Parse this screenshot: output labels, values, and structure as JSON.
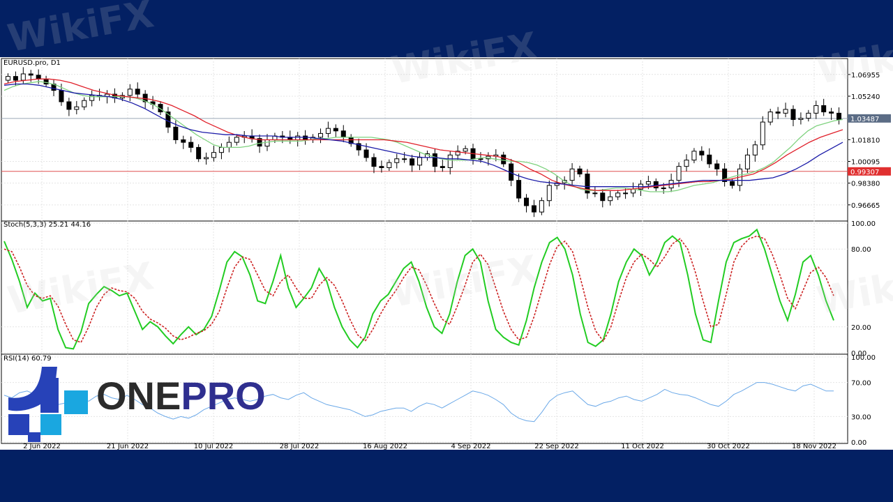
{
  "chart_data": [
    {
      "type": "candlestick",
      "title": "EURUSD.pro, D1",
      "y_ticks": [
        "1.06955",
        "1.05240",
        "1.01810",
        "1.00095",
        "0.98380",
        "0.96665"
      ],
      "y_tick_values": [
        1.06955,
        1.0524,
        1.0181,
        1.00095,
        0.9838,
        0.96665
      ],
      "ylim": [
        0.955,
        1.081
      ],
      "current_price_label": "1.03487",
      "current_price": 1.03487,
      "horizontal_level_label": "0.99307",
      "horizontal_level": 0.99307,
      "x_tick_labels": [
        "2 Jun 2022",
        "21 Jun 2022",
        "10 Jul 2022",
        "28 Jul 2022",
        "16 Aug 2022",
        "4 Sep 2022",
        "22 Sep 2022",
        "11 Oct 2022",
        "30 Oct 2022",
        "18 Nov 2022"
      ],
      "close_path": [
        1.068,
        1.065,
        1.07,
        1.069,
        1.066,
        1.062,
        1.057,
        1.048,
        1.042,
        1.044,
        1.049,
        1.053,
        1.052,
        1.054,
        1.051,
        1.053,
        1.058,
        1.054,
        1.048,
        1.046,
        1.04,
        1.028,
        1.018,
        1.016,
        1.012,
        1.003,
        1.004,
        1.008,
        1.012,
        1.016,
        1.02,
        1.021,
        1.019,
        1.013,
        1.018,
        1.021,
        1.02,
        1.018,
        1.021,
        1.018,
        1.02,
        1.023,
        1.027,
        1.025,
        1.02,
        1.015,
        1.01,
        1.004,
        0.997,
        0.996,
        1.0,
        1.003,
        1.003,
        0.998,
        1.004,
        1.007,
        0.997,
        0.996,
        1.006,
        1.009,
        1.011,
        1.003,
        1.003,
        1.005,
        1.006,
        0.999,
        0.986,
        0.972,
        0.966,
        0.961,
        0.97,
        0.982,
        0.984,
        0.986,
        0.995,
        0.991,
        0.976,
        0.976,
        0.97,
        0.973,
        0.976,
        0.976,
        0.979,
        0.983,
        0.985,
        0.98,
        0.98,
        0.986,
        0.997,
        1.002,
        1.009,
        1.006,
        0.999,
        0.995,
        0.985,
        0.982,
        0.995,
        1.006,
        1.014,
        1.032,
        1.04,
        1.039,
        1.042,
        1.034,
        1.035,
        1.039,
        1.045,
        1.04,
        1.039,
        1.034
      ],
      "ma_fast": [
        1.057,
        1.06,
        1.062,
        1.063,
        1.064,
        1.063,
        1.061,
        1.058,
        1.055,
        1.053,
        1.052,
        1.052,
        1.052,
        1.052,
        1.052,
        1.051,
        1.049,
        1.046,
        1.042,
        1.037,
        1.032,
        1.027,
        1.022,
        1.018,
        1.014,
        1.012,
        1.012,
        1.012,
        1.013,
        1.015,
        1.016,
        1.017,
        1.017,
        1.017,
        1.017,
        1.018,
        1.019,
        1.019,
        1.02,
        1.02,
        1.02,
        1.02,
        1.02,
        1.019,
        1.018,
        1.016,
        1.013,
        1.01,
        1.007,
        1.005,
        1.003,
        1.002,
        1.002,
        1.002,
        1.003,
        1.004,
        1.003,
        1.002,
        1.001,
        1.001,
        1.0,
        0.998,
        0.995,
        0.991,
        0.986,
        0.982,
        0.979,
        0.978,
        0.978,
        0.979,
        0.98,
        0.98,
        0.979,
        0.978,
        0.977,
        0.977,
        0.977,
        0.978,
        0.98,
        0.982,
        0.983,
        0.984,
        0.986,
        0.988,
        0.99,
        0.991,
        0.993,
        0.996,
        1.0,
        1.006,
        1.012,
        1.019,
        1.025,
        1.029,
        1.031,
        1.033,
        1.034
      ],
      "ma_mid": [
        1.062,
        1.064,
        1.065,
        1.066,
        1.066,
        1.065,
        1.063,
        1.06,
        1.057,
        1.055,
        1.053,
        1.052,
        1.051,
        1.05,
        1.048,
        1.045,
        1.041,
        1.037,
        1.032,
        1.028,
        1.024,
        1.021,
        1.019,
        1.018,
        1.018,
        1.018,
        1.018,
        1.018,
        1.018,
        1.018,
        1.018,
        1.018,
        1.018,
        1.018,
        1.018,
        1.017,
        1.016,
        1.014,
        1.012,
        1.01,
        1.009,
        1.008,
        1.007,
        1.006,
        1.005,
        1.003,
        1.0,
        0.995,
        0.991,
        0.986,
        0.983,
        0.981,
        0.979,
        0.978,
        0.978,
        0.978,
        0.979,
        0.98,
        0.981,
        0.982,
        0.983,
        0.984,
        0.985,
        0.985,
        0.986,
        0.987,
        0.989,
        0.991,
        0.995,
        1.0,
        1.006,
        1.011,
        1.016,
        1.02,
        1.023,
        1.026
      ],
      "ma_slow": [
        1.061,
        1.062,
        1.062,
        1.061,
        1.059,
        1.057,
        1.055,
        1.054,
        1.053,
        1.052,
        1.05,
        1.047,
        1.043,
        1.038,
        1.033,
        1.029,
        1.026,
        1.024,
        1.023,
        1.022,
        1.022,
        1.021,
        1.021,
        1.021,
        1.02,
        1.02,
        1.02,
        1.019,
        1.018,
        1.017,
        1.015,
        1.013,
        1.011,
        1.009,
        1.007,
        1.005,
        1.004,
        1.004,
        1.003,
        1.003,
        1.002,
        1.001,
        0.998,
        0.994,
        0.99,
        0.987,
        0.985,
        0.984,
        0.983,
        0.982,
        0.981,
        0.981,
        0.981,
        0.981,
        0.981,
        0.981,
        0.982,
        0.983,
        0.984,
        0.985,
        0.986,
        0.986,
        0.986,
        0.986,
        0.986,
        0.987,
        0.988,
        0.991,
        0.995,
        1.0,
        1.006,
        1.011,
        1.016
      ],
      "colors": {
        "ma_fast": "#7fd27f",
        "ma_mid": "#e0202a",
        "ma_slow": "#1a1aa8",
        "level": "#e05050",
        "price_marker": "#5b6c85"
      }
    },
    {
      "type": "line",
      "title": "Stoch(5,3,3) 25.21 44.16",
      "y_ticks": [
        "100.00",
        "80.00",
        "20.00",
        "0.00"
      ],
      "ylim": [
        0,
        100
      ],
      "series": [
        {
          "role": "main",
          "color": "#22cc22",
          "values": [
            86,
            72,
            55,
            35,
            46,
            40,
            42,
            18,
            4,
            3,
            16,
            38,
            45,
            51,
            48,
            44,
            46,
            32,
            18,
            24,
            20,
            13,
            7,
            14,
            20,
            14,
            18,
            28,
            48,
            70,
            78,
            74,
            60,
            40,
            38,
            55,
            75,
            50,
            35,
            42,
            50,
            65,
            55,
            35,
            20,
            10,
            4,
            12,
            30,
            40,
            45,
            55,
            65,
            70,
            55,
            35,
            20,
            15,
            30,
            55,
            75,
            80,
            70,
            40,
            18,
            12,
            8,
            6,
            25,
            50,
            70,
            85,
            89,
            80,
            60,
            30,
            8,
            5,
            10,
            30,
            55,
            70,
            80,
            75,
            60,
            70,
            85,
            90,
            85,
            60,
            30,
            10,
            8,
            40,
            70,
            85,
            88,
            90,
            95,
            80,
            60,
            40,
            25,
            45,
            70,
            75,
            60,
            40,
            25
          ]
        },
        {
          "role": "signal",
          "color": "#cc2222",
          "values": [
            80,
            78,
            66,
            52,
            44,
            42,
            44,
            36,
            22,
            10,
            8,
            20,
            35,
            45,
            50,
            48,
            47,
            42,
            32,
            26,
            23,
            19,
            13,
            10,
            12,
            15,
            17,
            22,
            32,
            50,
            66,
            74,
            72,
            60,
            48,
            44,
            55,
            60,
            50,
            42,
            42,
            52,
            58,
            52,
            40,
            26,
            14,
            9,
            18,
            30,
            40,
            48,
            58,
            66,
            64,
            52,
            38,
            26,
            22,
            36,
            52,
            70,
            76,
            68,
            50,
            32,
            18,
            10,
            12,
            28,
            48,
            68,
            82,
            86,
            78,
            58,
            35,
            17,
            9,
            20,
            40,
            58,
            70,
            76,
            72,
            66,
            74,
            84,
            88,
            80,
            62,
            40,
            20,
            22,
            45,
            70,
            82,
            88,
            90,
            88,
            76,
            60,
            42,
            34,
            48,
            62,
            66,
            58,
            44
          ]
        }
      ]
    },
    {
      "type": "line",
      "title": "RSI(14) 60.79",
      "y_ticks": [
        "100.00",
        "70.00",
        "30.00",
        "0.00"
      ],
      "ylim": [
        0,
        100
      ],
      "series": [
        {
          "role": "rsi",
          "color": "#6aa8e8",
          "values": [
            55,
            52,
            58,
            60,
            56,
            50,
            46,
            44,
            46,
            50,
            52,
            48,
            54,
            56,
            52,
            50,
            55,
            50,
            44,
            40,
            34,
            30,
            27,
            30,
            28,
            32,
            38,
            42,
            46,
            50,
            52,
            50,
            48,
            50,
            54,
            56,
            52,
            50,
            55,
            58,
            52,
            48,
            44,
            42,
            40,
            38,
            34,
            30,
            32,
            36,
            38,
            40,
            40,
            36,
            42,
            46,
            44,
            40,
            45,
            50,
            55,
            60,
            58,
            55,
            50,
            44,
            34,
            28,
            25,
            24,
            35,
            48,
            55,
            58,
            60,
            52,
            44,
            42,
            46,
            48,
            52,
            54,
            50,
            48,
            52,
            56,
            62,
            58,
            56,
            55,
            52,
            48,
            44,
            42,
            48,
            56,
            60,
            65,
            70,
            70,
            68,
            65,
            62,
            60,
            66,
            68,
            64,
            60,
            60
          ]
        }
      ]
    }
  ],
  "logo": {
    "one": "ONE",
    "pro": "PRO"
  },
  "watermark": "WikiFX"
}
